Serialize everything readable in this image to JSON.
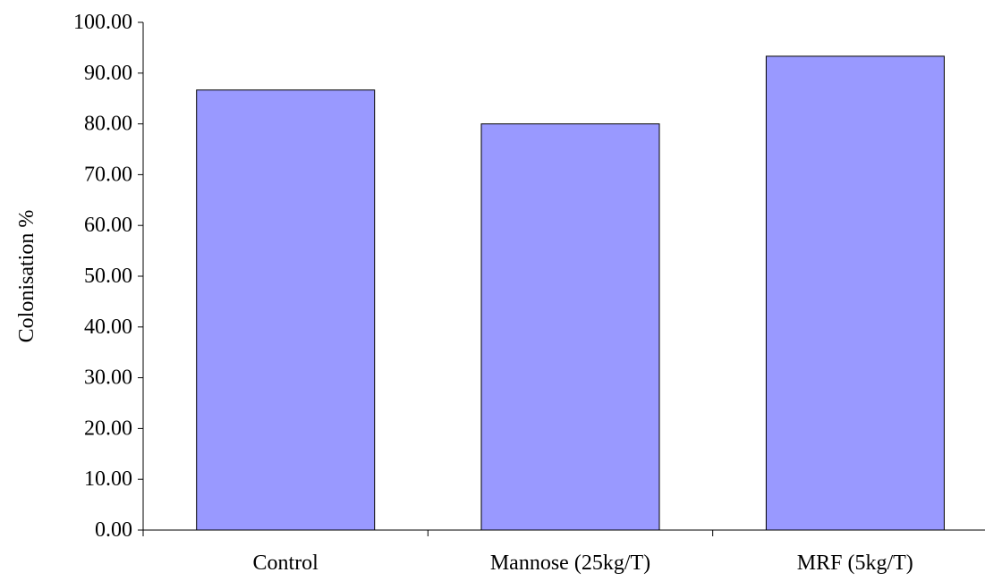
{
  "chart_data": {
    "type": "bar",
    "categories": [
      "Control",
      "Mannose (25kg/T)",
      "MRF (5kg/T)"
    ],
    "values": [
      86.67,
      80.0,
      93.33
    ],
    "title": "",
    "xlabel": "",
    "ylabel": "Colonisation %",
    "ylim": [
      0,
      100
    ],
    "ytick_step": 10,
    "ytick_decimals": 2,
    "grid": false,
    "legend": "none",
    "bar_color": "#9999ff",
    "bar_edge_color": "#000000"
  }
}
